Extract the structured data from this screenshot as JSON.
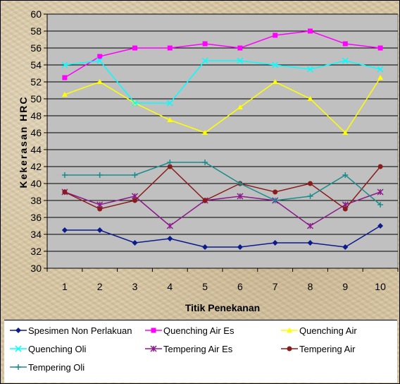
{
  "chart_data": {
    "type": "line",
    "title": "",
    "xlabel": "Titik Penekanan",
    "ylabel": "Kekerasan HRC",
    "x": [
      1,
      2,
      3,
      4,
      5,
      6,
      7,
      8,
      9,
      10
    ],
    "ylim": [
      30,
      60
    ],
    "yticks": [
      30,
      32,
      34,
      36,
      38,
      40,
      42,
      44,
      46,
      48,
      50,
      52,
      54,
      56,
      58,
      60
    ],
    "grid": true,
    "legend_position": "bottom",
    "series": [
      {
        "name": "Spesimen Non Perlakuan",
        "color": "#0b1a8c",
        "marker": "diamond",
        "values": [
          34.5,
          34.5,
          33,
          33.5,
          32.5,
          32.5,
          33,
          33,
          32.5,
          35
        ]
      },
      {
        "name": "Quenching Air Es",
        "color": "#ff00ff",
        "marker": "square",
        "values": [
          52.5,
          55,
          56,
          56,
          56.5,
          56,
          57.5,
          58,
          56.5,
          56
        ]
      },
      {
        "name": "Quenching Air",
        "color": "#ffff00",
        "marker": "triangle",
        "values": [
          50.5,
          52,
          49.5,
          47.5,
          46,
          49,
          52,
          50,
          46,
          52.5
        ]
      },
      {
        "name": "Quenching Oli",
        "color": "#00ffff",
        "marker": "x",
        "values": [
          54,
          54.5,
          49.5,
          49.5,
          54.5,
          54.5,
          54,
          53.5,
          54.5,
          53.5
        ]
      },
      {
        "name": "Tempering Air Es",
        "color": "#8b1a8b",
        "marker": "star",
        "values": [
          39,
          37.5,
          38.5,
          35,
          38,
          38.5,
          38,
          35,
          37.5,
          39
        ]
      },
      {
        "name": "Tempering Air",
        "color": "#8b1a1a",
        "marker": "circle",
        "values": [
          39,
          37,
          38,
          42,
          38,
          40,
          39,
          40,
          37,
          42
        ]
      },
      {
        "name": "Tempering Oli",
        "color": "#1a8c8c",
        "marker": "plus",
        "values": [
          41,
          41,
          41,
          42.5,
          42.5,
          40,
          38,
          38.5,
          41,
          37.5
        ]
      }
    ]
  }
}
